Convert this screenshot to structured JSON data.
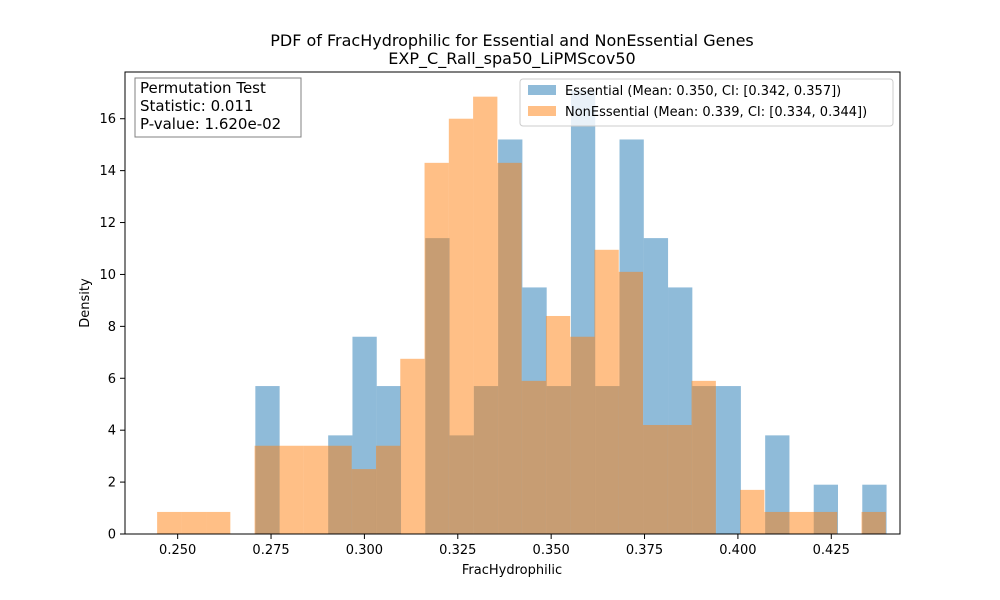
{
  "chart_data": {
    "type": "bar",
    "title": "PDF of FracHydrophilic for Essential and NonEssential Genes",
    "subtitle": "EXP_C_Rall_spa50_LiPMScov50",
    "xlabel": "FracHydrophilic",
    "ylabel": "Density",
    "xlim": [
      0.2359,
      0.4434
    ],
    "ylim": [
      0,
      17.8
    ],
    "xticks": [
      0.25,
      0.275,
      0.3,
      0.325,
      0.35,
      0.375,
      0.4,
      0.425
    ],
    "xtick_labels": [
      "0.250",
      "0.275",
      "0.300",
      "0.325",
      "0.350",
      "0.375",
      "0.400",
      "0.425"
    ],
    "yticks": [
      0,
      2,
      4,
      6,
      8,
      10,
      12,
      14,
      16
    ],
    "ytick_labels": [
      "0",
      "2",
      "4",
      "6",
      "8",
      "10",
      "12",
      "14",
      "16"
    ],
    "legend_position": "top-right",
    "annotation": {
      "line1": "Permutation Test",
      "line2": "Statistic: 0.011",
      "line3": "P-value: 1.620e-02"
    },
    "series": [
      {
        "name": "Essential (Mean: 0.350, CI: [0.342, 0.357])",
        "color": "#1f77b4",
        "opacity": 0.5,
        "bins": [
          {
            "x0": 0.2708,
            "x1": 0.2773,
            "y": 5.7
          },
          {
            "x0": 0.2903,
            "x1": 0.2968,
            "y": 3.8
          },
          {
            "x0": 0.2968,
            "x1": 0.3033,
            "y": 7.6
          },
          {
            "x0": 0.3033,
            "x1": 0.3098,
            "y": 5.7
          },
          {
            "x0": 0.3163,
            "x1": 0.3228,
            "y": 11.4
          },
          {
            "x0": 0.3228,
            "x1": 0.3293,
            "y": 3.8
          },
          {
            "x0": 0.3293,
            "x1": 0.3358,
            "y": 5.7
          },
          {
            "x0": 0.3358,
            "x1": 0.3423,
            "y": 15.2
          },
          {
            "x0": 0.3423,
            "x1": 0.3488,
            "y": 9.5
          },
          {
            "x0": 0.3488,
            "x1": 0.3553,
            "y": 5.7
          },
          {
            "x0": 0.3553,
            "x1": 0.3618,
            "y": 17.1
          },
          {
            "x0": 0.3618,
            "x1": 0.3683,
            "y": 5.7
          },
          {
            "x0": 0.3683,
            "x1": 0.3748,
            "y": 15.2
          },
          {
            "x0": 0.3748,
            "x1": 0.3813,
            "y": 11.4
          },
          {
            "x0": 0.3813,
            "x1": 0.3878,
            "y": 9.5
          },
          {
            "x0": 0.3878,
            "x1": 0.3943,
            "y": 5.7
          },
          {
            "x0": 0.3943,
            "x1": 0.4008,
            "y": 5.7
          },
          {
            "x0": 0.4073,
            "x1": 0.4138,
            "y": 3.8
          },
          {
            "x0": 0.4203,
            "x1": 0.4268,
            "y": 1.9
          },
          {
            "x0": 0.4333,
            "x1": 0.4398,
            "y": 1.9
          }
        ]
      },
      {
        "name": "NonEssential (Mean: 0.339, CI: [0.334, 0.344])",
        "color": "#ff7f0e",
        "opacity": 0.5,
        "bins": [
          {
            "x0": 0.2445,
            "x1": 0.251,
            "y": 0.85
          },
          {
            "x0": 0.251,
            "x1": 0.2576,
            "y": 0.85
          },
          {
            "x0": 0.2576,
            "x1": 0.2641,
            "y": 0.85
          },
          {
            "x0": 0.2706,
            "x1": 0.2771,
            "y": 3.4
          },
          {
            "x0": 0.2771,
            "x1": 0.2836,
            "y": 3.4
          },
          {
            "x0": 0.2836,
            "x1": 0.2901,
            "y": 3.4
          },
          {
            "x0": 0.2901,
            "x1": 0.2966,
            "y": 3.4
          },
          {
            "x0": 0.2966,
            "x1": 0.3031,
            "y": 2.5
          },
          {
            "x0": 0.3031,
            "x1": 0.3096,
            "y": 3.4
          },
          {
            "x0": 0.3096,
            "x1": 0.3161,
            "y": 6.75
          },
          {
            "x0": 0.3161,
            "x1": 0.3226,
            "y": 14.3
          },
          {
            "x0": 0.3226,
            "x1": 0.3291,
            "y": 16.0
          },
          {
            "x0": 0.3291,
            "x1": 0.3356,
            "y": 16.85
          },
          {
            "x0": 0.3356,
            "x1": 0.3421,
            "y": 14.3
          },
          {
            "x0": 0.3421,
            "x1": 0.3486,
            "y": 5.9
          },
          {
            "x0": 0.3486,
            "x1": 0.3551,
            "y": 8.4
          },
          {
            "x0": 0.3551,
            "x1": 0.3616,
            "y": 7.6
          },
          {
            "x0": 0.3616,
            "x1": 0.3681,
            "y": 10.95
          },
          {
            "x0": 0.3681,
            "x1": 0.3746,
            "y": 10.1
          },
          {
            "x0": 0.3746,
            "x1": 0.3811,
            "y": 4.2
          },
          {
            "x0": 0.3811,
            "x1": 0.3876,
            "y": 4.2
          },
          {
            "x0": 0.3876,
            "x1": 0.3941,
            "y": 5.9
          },
          {
            "x0": 0.4006,
            "x1": 0.4071,
            "y": 1.7
          },
          {
            "x0": 0.4071,
            "x1": 0.4136,
            "y": 0.85
          },
          {
            "x0": 0.4136,
            "x1": 0.4201,
            "y": 0.85
          },
          {
            "x0": 0.4201,
            "x1": 0.4266,
            "y": 0.85
          },
          {
            "x0": 0.4331,
            "x1": 0.4396,
            "y": 0.85
          }
        ]
      }
    ]
  }
}
